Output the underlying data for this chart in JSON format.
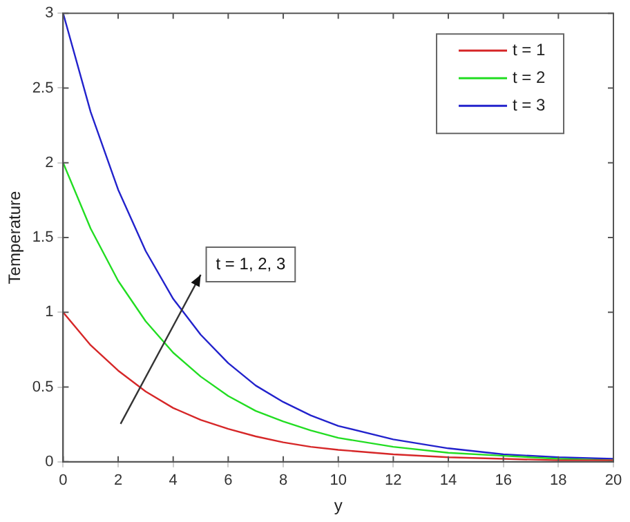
{
  "chart_data": {
    "type": "line",
    "xlabel": "y",
    "ylabel": "Temperature",
    "x": [
      0,
      1,
      2,
      3,
      4,
      5,
      6,
      7,
      8,
      9,
      10,
      12,
      14,
      16,
      18,
      20
    ],
    "series": [
      {
        "name": "t = 1",
        "color": "#d62728",
        "values": [
          1,
          0.78,
          0.61,
          0.47,
          0.36,
          0.28,
          0.22,
          0.17,
          0.13,
          0.1,
          0.08,
          0.05,
          0.03,
          0.02,
          0.01,
          0.01
        ]
      },
      {
        "name": "t = 2",
        "color": "#22dd22",
        "values": [
          2,
          1.56,
          1.21,
          0.94,
          0.73,
          0.57,
          0.44,
          0.34,
          0.27,
          0.21,
          0.16,
          0.1,
          0.06,
          0.04,
          0.02,
          0.01
        ]
      },
      {
        "name": "t = 3",
        "color": "#2222cc",
        "values": [
          3,
          2.34,
          1.82,
          1.41,
          1.09,
          0.85,
          0.66,
          0.51,
          0.4,
          0.31,
          0.24,
          0.15,
          0.09,
          0.05,
          0.03,
          0.02
        ]
      }
    ],
    "xlim": [
      0,
      20
    ],
    "xticks": [
      0,
      2,
      4,
      6,
      8,
      10,
      12,
      14,
      16,
      18,
      20
    ],
    "ylim": [
      0,
      3
    ],
    "yticks": [
      0,
      0.5,
      1,
      1.5,
      2,
      2.5,
      3
    ],
    "grid": false,
    "legend": "top right",
    "marker": "none",
    "line_style": "solid",
    "annotations": [
      "t = 1, 2, 3"
    ]
  }
}
